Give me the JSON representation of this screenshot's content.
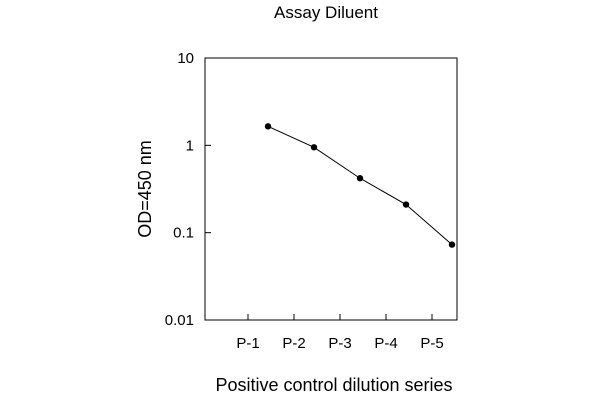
{
  "chart_data": {
    "type": "line",
    "title": "Assay Diluent",
    "xlabel": "Positive control dilution series",
    "ylabel": "OD=450 nm",
    "categories": [
      "P-1",
      "P-2",
      "P-3",
      "P-4",
      "P-5"
    ],
    "series": [
      {
        "values": [
          1.65,
          0.95,
          0.42,
          0.21,
          0.073
        ],
        "color": "#000000",
        "marker": "circle"
      }
    ],
    "y_scale": "log",
    "ylim": [
      0.01,
      10
    ],
    "y_ticks": [
      {
        "value": 0.01,
        "label": "0.01"
      },
      {
        "value": 0.1,
        "label": "0.1"
      },
      {
        "value": 1,
        "label": "1"
      },
      {
        "value": 10,
        "label": "10"
      }
    ],
    "grid": false,
    "legend": "none"
  }
}
